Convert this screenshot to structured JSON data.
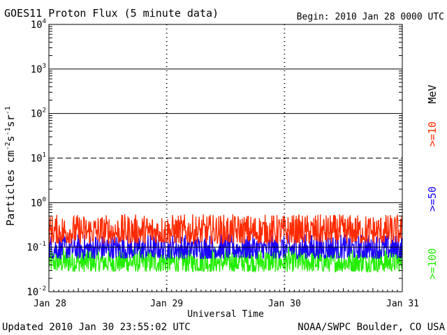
{
  "header": {
    "title": "GOES11 Proton Flux (5 minute data)",
    "begin": "Begin: 2010 Jan 28 0000 UTC"
  },
  "footer": {
    "updated": "Updated 2010 Jan 30 23:55:02 UTC",
    "credit": "NOAA/SWPC Boulder, CO USA"
  },
  "chart_data": {
    "type": "line",
    "title": "GOES11 Proton Flux (5 minute data)",
    "xlabel": "Universal Time",
    "ylabel": "Particles cm-2s-1sr-1",
    "yscale": "log",
    "ylim": [
      0.01,
      10000
    ],
    "y_ticks": [
      {
        "base": "10",
        "exp": "-2",
        "value": 0.01
      },
      {
        "base": "10",
        "exp": "-1",
        "value": 0.1
      },
      {
        "base": "10",
        "exp": "0",
        "value": 1
      },
      {
        "base": "10",
        "exp": "1",
        "value": 10
      },
      {
        "base": "10",
        "exp": "2",
        "value": 100
      },
      {
        "base": "10",
        "exp": "3",
        "value": 1000
      },
      {
        "base": "10",
        "exp": "4",
        "value": 10000
      }
    ],
    "x_ticks": [
      "Jan 28",
      "Jan 29",
      "Jan 30",
      "Jan 31"
    ],
    "xlim_days": [
      0,
      3
    ],
    "dashed_level": 10,
    "right_label_unit": "MeV",
    "series": [
      {
        "name": ">=10",
        "color": "#ff2a00",
        "range": [
          0.12,
          0.55
        ],
        "typical": 0.2
      },
      {
        "name": ">=50",
        "color": "#1a00ff",
        "range": [
          0.055,
          0.2
        ],
        "typical": 0.08
      },
      {
        "name": ">=100",
        "color": "#22ee00",
        "range": [
          0.028,
          0.1
        ],
        "typical": 0.045
      }
    ]
  }
}
